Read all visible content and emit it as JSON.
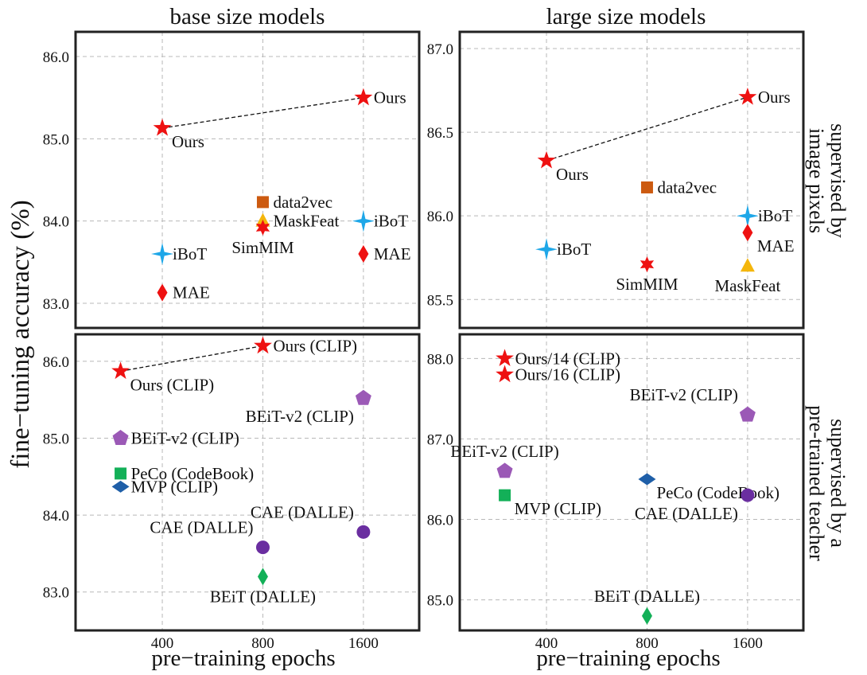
{
  "figure": {
    "col_titles": [
      "base size models",
      "large size models"
    ],
    "row_labels": [
      [
        "supervised by",
        "image pixels"
      ],
      [
        "supervised by a",
        "pre-trained teacher"
      ]
    ],
    "ylabel": "fine−tuning  accuracy (%)",
    "xlabel": "pre−training  epochs"
  },
  "chart_data": [
    {
      "type": "scatter",
      "panel": "base-pixels",
      "x_tick_labels": [
        "400",
        "800",
        "1600"
      ],
      "x_tick_positions": [
        400,
        800,
        1600
      ],
      "x_scale": "log",
      "xlim": [
        220,
        2350
      ],
      "ylim": [
        82.7,
        86.3
      ],
      "yticks": [
        "83.0",
        "84.0",
        "85.0",
        "86.0"
      ],
      "ytick_values": [
        83.0,
        84.0,
        85.0,
        86.0
      ],
      "grid": true,
      "points": [
        {
          "label": "Ours",
          "x": 400,
          "y": 85.13,
          "marker": "star",
          "color": "#ee1111",
          "label_pos": "below-right"
        },
        {
          "label": "Ours",
          "x": 1600,
          "y": 85.5,
          "marker": "star",
          "color": "#ee1111",
          "label_pos": "right"
        },
        {
          "label": "iBoT",
          "x": 400,
          "y": 83.6,
          "marker": "star4",
          "color": "#1ea7e8",
          "label_pos": "right"
        },
        {
          "label": "MAE",
          "x": 400,
          "y": 83.13,
          "marker": "diamond",
          "color": "#ee1111",
          "label_pos": "right"
        },
        {
          "label": "data2vec",
          "x": 800,
          "y": 84.23,
          "marker": "square",
          "color": "#cc5a10",
          "label_pos": "right"
        },
        {
          "label": "MaskFeat",
          "x": 800,
          "y": 84.0,
          "marker": "triangle",
          "color": "#f4b60c",
          "label_pos": "right"
        },
        {
          "label": "SimMIM",
          "x": 800,
          "y": 83.92,
          "marker": "star6",
          "color": "#ee1111",
          "label_pos": "below"
        },
        {
          "label": "iBoT",
          "x": 1600,
          "y": 84.0,
          "marker": "star4",
          "color": "#1ea7e8",
          "label_pos": "right"
        },
        {
          "label": "MAE",
          "x": 1600,
          "y": 83.6,
          "marker": "diamond",
          "color": "#ee1111",
          "label_pos": "right"
        }
      ],
      "lines": [
        {
          "from": [
            400,
            85.13
          ],
          "to": [
            1600,
            85.5
          ],
          "style": "dashed"
        }
      ]
    },
    {
      "type": "scatter",
      "panel": "large-pixels",
      "x_tick_labels": [
        "400",
        "800",
        "1600"
      ],
      "x_tick_positions": [
        400,
        800,
        1600
      ],
      "x_scale": "log",
      "xlim": [
        220,
        2350
      ],
      "ylim": [
        85.33,
        87.1
      ],
      "yticks": [
        "85.5",
        "86.0",
        "86.5",
        "87.0"
      ],
      "ytick_values": [
        85.5,
        86.0,
        86.5,
        87.0
      ],
      "grid": true,
      "points": [
        {
          "label": "Ours",
          "x": 400,
          "y": 86.33,
          "marker": "star",
          "color": "#ee1111",
          "label_pos": "below-right"
        },
        {
          "label": "Ours",
          "x": 1600,
          "y": 86.71,
          "marker": "star",
          "color": "#ee1111",
          "label_pos": "right"
        },
        {
          "label": "data2vec",
          "x": 800,
          "y": 86.17,
          "marker": "square",
          "color": "#cc5a10",
          "label_pos": "right"
        },
        {
          "label": "iBoT",
          "x": 400,
          "y": 85.8,
          "marker": "star4",
          "color": "#1ea7e8",
          "label_pos": "right"
        },
        {
          "label": "SimMIM",
          "x": 800,
          "y": 85.71,
          "marker": "star6",
          "color": "#ee1111",
          "label_pos": "below"
        },
        {
          "label": "iBoT",
          "x": 1600,
          "y": 86.0,
          "marker": "star4",
          "color": "#1ea7e8",
          "label_pos": "right"
        },
        {
          "label": "MAE",
          "x": 1600,
          "y": 85.9,
          "marker": "diamond",
          "color": "#ee1111",
          "label_pos": "below-right"
        },
        {
          "label": "MaskFeat",
          "x": 1600,
          "y": 85.7,
          "marker": "triangle",
          "color": "#f4b60c",
          "label_pos": "below"
        }
      ],
      "lines": [
        {
          "from": [
            400,
            86.33
          ],
          "to": [
            1600,
            86.71
          ],
          "style": "dashed"
        }
      ]
    },
    {
      "type": "scatter",
      "panel": "base-teacher",
      "x_tick_labels": [
        "400",
        "800",
        "1600"
      ],
      "x_tick_positions": [
        400,
        800,
        1600
      ],
      "x_scale": "log",
      "xlim": [
        220,
        2350
      ],
      "ylim": [
        82.5,
        86.35
      ],
      "yticks": [
        "83.0",
        "84.0",
        "85.0",
        "86.0"
      ],
      "ytick_values": [
        83.0,
        84.0,
        85.0,
        86.0
      ],
      "grid": true,
      "points": [
        {
          "label": "Ours (CLIP)",
          "x": 300,
          "y": 85.87,
          "marker": "star",
          "color": "#ee1111",
          "label_pos": "below-right"
        },
        {
          "label": "Ours (CLIP)",
          "x": 800,
          "y": 86.2,
          "marker": "star",
          "color": "#ee1111",
          "label_pos": "right"
        },
        {
          "label": "BEiT-v2 (CLIP)",
          "x": 1600,
          "y": 85.52,
          "marker": "pentagon",
          "color": "#9b59b6",
          "label_pos": "below-left"
        },
        {
          "label": "BEiT-v2 (CLIP)",
          "x": 300,
          "y": 85.0,
          "marker": "pentagon",
          "color": "#9b59b6",
          "label_pos": "right"
        },
        {
          "label": "PeCo (CodeBook)",
          "x": 300,
          "y": 84.54,
          "marker": "square",
          "color": "#13b058",
          "label_pos": "right"
        },
        {
          "label": "MVP (CLIP)",
          "x": 300,
          "y": 84.37,
          "marker": "diamondwide",
          "color": "#1f5fa8",
          "label_pos": "right"
        },
        {
          "label": "CAE (DALLE)",
          "x": 1600,
          "y": 83.78,
          "marker": "circle",
          "color": "#6a2ea0",
          "label_pos": "above-left"
        },
        {
          "label": "CAE (DALLE)",
          "x": 800,
          "y": 83.58,
          "marker": "circle",
          "color": "#6a2ea0",
          "label_pos": "above-left"
        },
        {
          "label": "BEiT (DALLE)",
          "x": 800,
          "y": 83.2,
          "marker": "diamond",
          "color": "#13b058",
          "label_pos": "below"
        }
      ],
      "lines": [
        {
          "from": [
            300,
            85.87
          ],
          "to": [
            800,
            86.2
          ],
          "style": "dashed"
        }
      ]
    },
    {
      "type": "scatter",
      "panel": "large-teacher",
      "x_tick_labels": [
        "400",
        "800",
        "1600"
      ],
      "x_tick_positions": [
        400,
        800,
        1600
      ],
      "x_scale": "log",
      "xlim": [
        220,
        2350
      ],
      "ylim": [
        84.62,
        88.3
      ],
      "yticks": [
        "85.0",
        "86.0",
        "87.0",
        "88.0"
      ],
      "ytick_values": [
        85.0,
        86.0,
        87.0,
        88.0
      ],
      "grid": true,
      "points": [
        {
          "label": "Ours/14 (CLIP)",
          "x": 300,
          "y": 88.0,
          "marker": "star",
          "color": "#ee1111",
          "label_pos": "right"
        },
        {
          "label": "Ours/16 (CLIP)",
          "x": 300,
          "y": 87.8,
          "marker": "star",
          "color": "#ee1111",
          "label_pos": "right"
        },
        {
          "label": "BEiT-v2 (CLIP)",
          "x": 1600,
          "y": 87.3,
          "marker": "pentagon",
          "color": "#9b59b6",
          "label_pos": "above-left"
        },
        {
          "label": "BEiT-v2 (CLIP)",
          "x": 300,
          "y": 86.6,
          "marker": "pentagon",
          "color": "#9b59b6",
          "label_pos": "above"
        },
        {
          "label": "MVP (CLIP)",
          "x": 300,
          "y": 86.3,
          "marker": "square",
          "color": "#13b058",
          "label_pos": "below-right"
        },
        {
          "label": "PeCo (CodeBook)",
          "x": 800,
          "y": 86.5,
          "marker": "diamondwide",
          "color": "#1f5fa8",
          "label_pos": "below-right"
        },
        {
          "label": "CAE (DALLE)",
          "x": 1600,
          "y": 86.3,
          "marker": "circle",
          "color": "#6a2ea0",
          "label_pos": "below-left"
        },
        {
          "label": "BEiT (DALLE)",
          "x": 800,
          "y": 84.8,
          "marker": "diamond",
          "color": "#13b058",
          "label_pos": "above"
        }
      ],
      "lines": []
    }
  ]
}
